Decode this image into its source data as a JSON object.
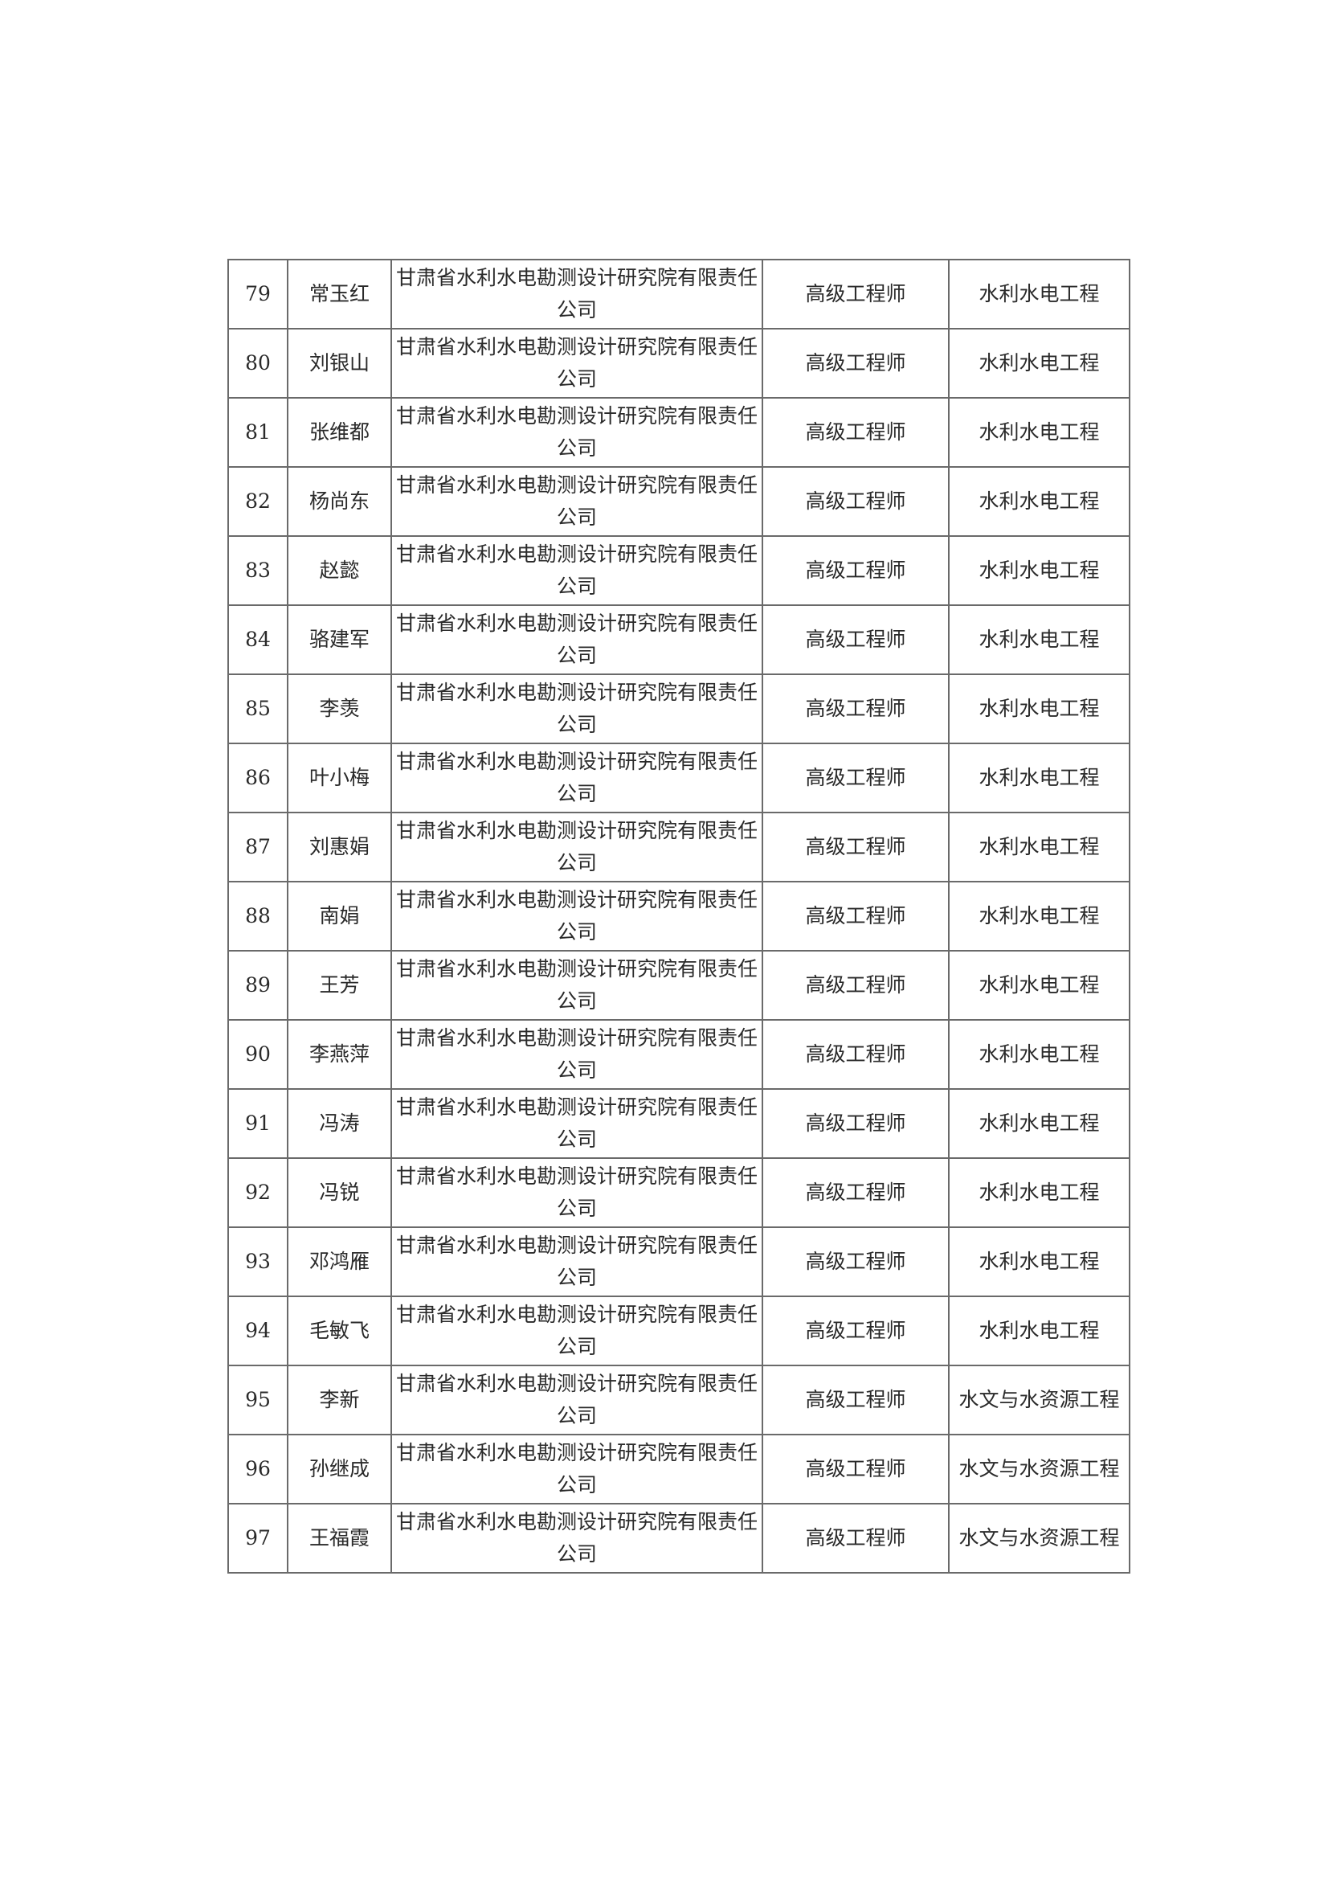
{
  "rows": [
    {
      "no": "79",
      "name": "常玉红",
      "unit": "甘肃省水利水电勘测设计研究院有限责任公司",
      "title": "高级工程师",
      "major": "水利水电工程"
    },
    {
      "no": "80",
      "name": "刘银山",
      "unit": "甘肃省水利水电勘测设计研究院有限责任公司",
      "title": "高级工程师",
      "major": "水利水电工程"
    },
    {
      "no": "81",
      "name": "张维都",
      "unit": "甘肃省水利水电勘测设计研究院有限责任公司",
      "title": "高级工程师",
      "major": "水利水电工程"
    },
    {
      "no": "82",
      "name": "杨尚东",
      "unit": "甘肃省水利水电勘测设计研究院有限责任公司",
      "title": "高级工程师",
      "major": "水利水电工程"
    },
    {
      "no": "83",
      "name": "赵懿",
      "unit": "甘肃省水利水电勘测设计研究院有限责任公司",
      "title": "高级工程师",
      "major": "水利水电工程"
    },
    {
      "no": "84",
      "name": "骆建军",
      "unit": "甘肃省水利水电勘测设计研究院有限责任公司",
      "title": "高级工程师",
      "major": "水利水电工程"
    },
    {
      "no": "85",
      "name": "李羡",
      "unit": "甘肃省水利水电勘测设计研究院有限责任公司",
      "title": "高级工程师",
      "major": "水利水电工程"
    },
    {
      "no": "86",
      "name": "叶小梅",
      "unit": "甘肃省水利水电勘测设计研究院有限责任公司",
      "title": "高级工程师",
      "major": "水利水电工程"
    },
    {
      "no": "87",
      "name": "刘惠娟",
      "unit": "甘肃省水利水电勘测设计研究院有限责任公司",
      "title": "高级工程师",
      "major": "水利水电工程"
    },
    {
      "no": "88",
      "name": "南娟",
      "unit": "甘肃省水利水电勘测设计研究院有限责任公司",
      "title": "高级工程师",
      "major": "水利水电工程"
    },
    {
      "no": "89",
      "name": "王芳",
      "unit": "甘肃省水利水电勘测设计研究院有限责任公司",
      "title": "高级工程师",
      "major": "水利水电工程"
    },
    {
      "no": "90",
      "name": "李燕萍",
      "unit": "甘肃省水利水电勘测设计研究院有限责任公司",
      "title": "高级工程师",
      "major": "水利水电工程"
    },
    {
      "no": "91",
      "name": "冯涛",
      "unit": "甘肃省水利水电勘测设计研究院有限责任公司",
      "title": "高级工程师",
      "major": "水利水电工程"
    },
    {
      "no": "92",
      "name": "冯锐",
      "unit": "甘肃省水利水电勘测设计研究院有限责任公司",
      "title": "高级工程师",
      "major": "水利水电工程"
    },
    {
      "no": "93",
      "name": "邓鸿雁",
      "unit": "甘肃省水利水电勘测设计研究院有限责任公司",
      "title": "高级工程师",
      "major": "水利水电工程"
    },
    {
      "no": "94",
      "name": "毛敏飞",
      "unit": "甘肃省水利水电勘测设计研究院有限责任公司",
      "title": "高级工程师",
      "major": "水利水电工程"
    },
    {
      "no": "95",
      "name": "李新",
      "unit": "甘肃省水利水电勘测设计研究院有限责任公司",
      "title": "高级工程师",
      "major": "水文与水资源工程"
    },
    {
      "no": "96",
      "name": "孙继成",
      "unit": "甘肃省水利水电勘测设计研究院有限责任公司",
      "title": "高级工程师",
      "major": "水文与水资源工程"
    },
    {
      "no": "97",
      "name": "王福霞",
      "unit": "甘肃省水利水电勘测设计研究院有限责任公司",
      "title": "高级工程师",
      "major": "水文与水资源工程"
    }
  ]
}
